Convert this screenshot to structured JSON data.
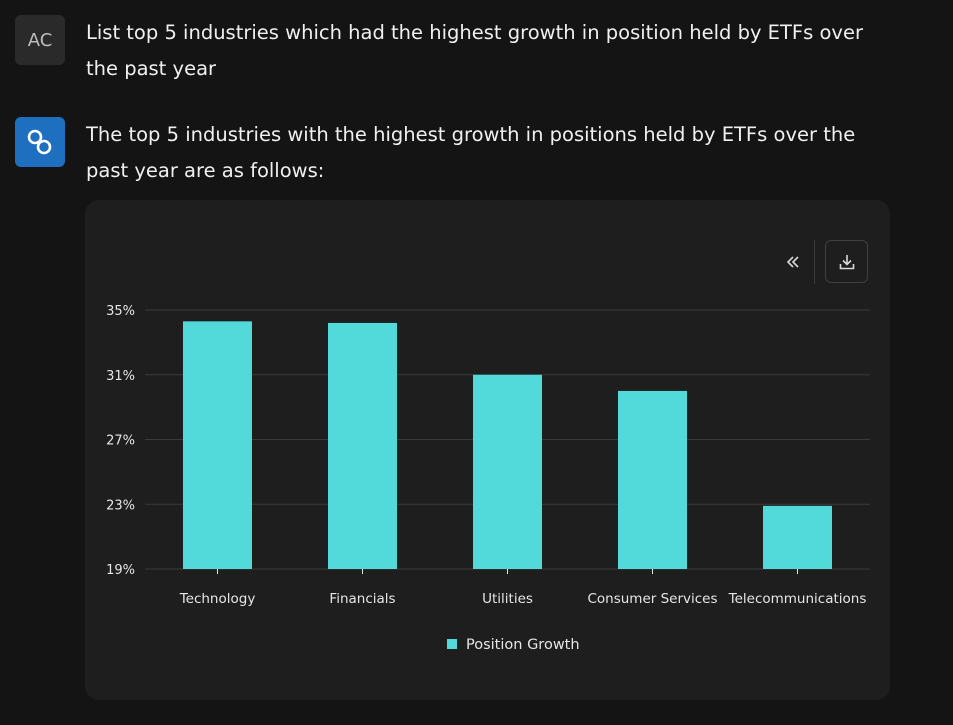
{
  "conversation": {
    "user": {
      "avatar_initials": "AC",
      "message": "List top 5 industries which had the highest growth in position held by ETFs over the past year"
    },
    "assistant": {
      "avatar_icon": "link-logo-icon",
      "message": "The top 5 industries with the highest growth in positions held by ETFs over the past year are as follows:"
    }
  },
  "toolbar": {
    "collapse_icon": "double-chevron-left-icon",
    "download_icon": "download-icon"
  },
  "colors": {
    "bar": "#52d9da",
    "grid": "#3a3a3a",
    "axis_text": "#e6e6e6",
    "bot_avatar": "#1f6fc0"
  },
  "chart_data": {
    "type": "bar",
    "title": "",
    "xlabel": "",
    "ylabel": "",
    "categories": [
      "Technology",
      "Financials",
      "Utilities",
      "Consumer Services",
      "Telecommunications"
    ],
    "series": [
      {
        "name": "Position Growth",
        "values": [
          34.3,
          34.2,
          31.0,
          30.0,
          22.9
        ]
      }
    ],
    "ylim": [
      19,
      35
    ],
    "yticks": [
      19,
      23,
      27,
      31,
      35
    ],
    "ytick_suffix": "%",
    "grid": true,
    "legend_position": "bottom-center"
  }
}
